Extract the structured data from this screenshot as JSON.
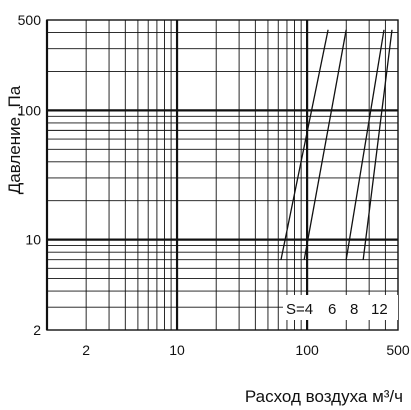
{
  "chart_data": {
    "type": "line",
    "title": "",
    "xlabel": "Расход воздуха м³/ч",
    "ylabel": "Давление, Па",
    "x_scale": "log",
    "y_scale": "log",
    "xlim": [
      1,
      500
    ],
    "ylim": [
      2,
      500
    ],
    "x_tick_labels": [
      {
        "value": 2,
        "label": "2"
      },
      {
        "value": 10,
        "label": "10"
      },
      {
        "value": 100,
        "label": "100"
      },
      {
        "value": 500,
        "label": "500"
      }
    ],
    "y_tick_labels": [
      {
        "value": 2,
        "label": "2"
      },
      {
        "value": 10,
        "label": "10"
      },
      {
        "value": 100,
        "label": "100"
      },
      {
        "value": 500,
        "label": "500"
      }
    ],
    "grid": true,
    "series_label_text": "S=4",
    "series": [
      {
        "label": "4",
        "x": [
          63,
          145
        ],
        "y": [
          7,
          420
        ]
      },
      {
        "label": "6",
        "x": [
          95,
          200
        ],
        "y": [
          7,
          420
        ]
      },
      {
        "label": "8",
        "x": [
          200,
          390
        ],
        "y": [
          7,
          420
        ]
      },
      {
        "label": "12",
        "x": [
          270,
          450
        ],
        "y": [
          7,
          420
        ]
      }
    ]
  }
}
